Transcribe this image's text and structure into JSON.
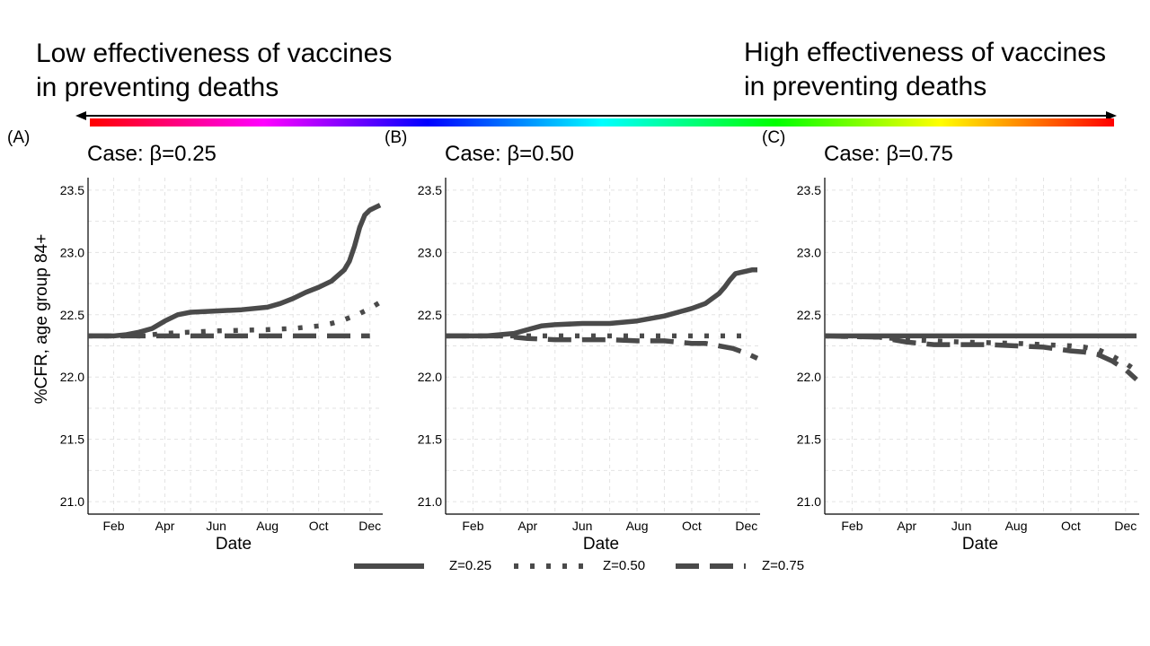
{
  "header": {
    "left_text": [
      "Low effectiveness of vaccines",
      "in preventing deaths"
    ],
    "right_text": [
      "High effectiveness of vaccines",
      "in preventing deaths"
    ]
  },
  "panels": [
    {
      "letter": "(A)",
      "title": "Case: β=0.25"
    },
    {
      "letter": "(B)",
      "title": "Case: β=0.50"
    },
    {
      "letter": "(C)",
      "title": "Case: β=0.75"
    }
  ],
  "legend": [
    {
      "label": "Z=0.25",
      "style": "solid"
    },
    {
      "label": "Z=0.50",
      "style": "dotted"
    },
    {
      "label": "Z=0.75",
      "style": "dashed"
    }
  ],
  "colors": {
    "line": "#4a4a4a",
    "grid": "#e3e3e3"
  },
  "chart_data": [
    {
      "type": "line",
      "title": "Case: β=0.25",
      "xlabel": "Date",
      "ylabel": "%CFR, age group 84+",
      "x_ticks": [
        "Feb",
        "Apr",
        "Jun",
        "Aug",
        "Oct",
        "Dec"
      ],
      "x_tick_positions": [
        1,
        3,
        5,
        7,
        9,
        11
      ],
      "xlim": [
        0.0,
        11.5
      ],
      "ylim": [
        20.9,
        23.6
      ],
      "y_ticks": [
        21.0,
        21.5,
        22.0,
        22.5,
        23.0,
        23.5
      ],
      "grid": true,
      "series": [
        {
          "name": "Z=0.25",
          "style": "solid",
          "x": [
            0,
            1,
            1.5,
            2,
            2.5,
            3,
            3.5,
            4,
            5,
            6,
            7,
            7.5,
            8,
            8.5,
            9,
            9.5,
            10,
            10.2,
            10.4,
            10.6,
            10.8,
            11,
            11.2,
            11.4
          ],
          "y": [
            22.33,
            22.33,
            22.34,
            22.36,
            22.39,
            22.45,
            22.5,
            22.52,
            22.53,
            22.54,
            22.56,
            22.59,
            22.63,
            22.68,
            22.72,
            22.77,
            22.86,
            22.93,
            23.05,
            23.2,
            23.3,
            23.34,
            23.36,
            23.38
          ]
        },
        {
          "name": "Z=0.50",
          "style": "dotted",
          "x": [
            0,
            2,
            3,
            5,
            7,
            8,
            9,
            9.5,
            10,
            10.5,
            11,
            11.4
          ],
          "y": [
            22.33,
            22.33,
            22.35,
            22.37,
            22.38,
            22.39,
            22.41,
            22.43,
            22.46,
            22.5,
            22.55,
            22.6
          ]
        },
        {
          "name": "Z=0.75",
          "style": "dashed",
          "x": [
            0,
            11
          ],
          "y": [
            22.33,
            22.33
          ]
        }
      ]
    },
    {
      "type": "line",
      "title": "Case: β=0.50",
      "xlabel": "Date",
      "ylabel": "",
      "x_ticks": [
        "Feb",
        "Apr",
        "Jun",
        "Aug",
        "Oct",
        "Dec"
      ],
      "x_tick_positions": [
        1,
        3,
        5,
        7,
        9,
        11
      ],
      "xlim": [
        0.0,
        11.5
      ],
      "ylim": [
        20.9,
        23.6
      ],
      "y_ticks": [
        21.0,
        21.5,
        22.0,
        22.5,
        23.0,
        23.5
      ],
      "grid": true,
      "series": [
        {
          "name": "Z=0.25",
          "style": "solid",
          "x": [
            0,
            1,
            1.5,
            2,
            2.5,
            3,
            3.5,
            4,
            5,
            6,
            7,
            7.5,
            8,
            8.5,
            9,
            9.5,
            10,
            10.2,
            10.4,
            10.6,
            10.8,
            11,
            11.2,
            11.4
          ],
          "y": [
            22.33,
            22.33,
            22.33,
            22.34,
            22.35,
            22.38,
            22.41,
            22.42,
            22.43,
            22.43,
            22.45,
            22.47,
            22.49,
            22.52,
            22.55,
            22.59,
            22.67,
            22.72,
            22.78,
            22.83,
            22.84,
            22.85,
            22.86,
            22.86
          ]
        },
        {
          "name": "Z=0.50",
          "style": "dotted",
          "x": [
            0,
            2,
            3,
            5,
            7,
            9,
            11
          ],
          "y": [
            22.33,
            22.33,
            22.33,
            22.33,
            22.33,
            22.33,
            22.33
          ]
        },
        {
          "name": "Z=0.75",
          "style": "dashed",
          "x": [
            0,
            2,
            3,
            4,
            5,
            6,
            7,
            8,
            9,
            9.5,
            10,
            10.5,
            11,
            11.4
          ],
          "y": [
            22.33,
            22.33,
            22.31,
            22.3,
            22.3,
            22.3,
            22.29,
            22.29,
            22.27,
            22.27,
            22.25,
            22.23,
            22.19,
            22.15
          ]
        }
      ]
    },
    {
      "type": "line",
      "title": "Case: β=0.75",
      "xlabel": "Date",
      "ylabel": "",
      "x_ticks": [
        "Feb",
        "Apr",
        "Jun",
        "Aug",
        "Oct",
        "Dec"
      ],
      "x_tick_positions": [
        1,
        3,
        5,
        7,
        9,
        11
      ],
      "xlim": [
        0.0,
        11.5
      ],
      "ylim": [
        20.9,
        23.6
      ],
      "y_ticks": [
        21.0,
        21.5,
        22.0,
        22.5,
        23.0,
        23.5
      ],
      "grid": true,
      "series": [
        {
          "name": "Z=0.25",
          "style": "solid",
          "x": [
            0,
            11.4
          ],
          "y": [
            22.33,
            22.33
          ]
        },
        {
          "name": "Z=0.50",
          "style": "dotted",
          "x": [
            0,
            2,
            3,
            5,
            7,
            9,
            9.5,
            10,
            10.5,
            11,
            11.4
          ],
          "y": [
            22.33,
            22.32,
            22.3,
            22.28,
            22.27,
            22.25,
            22.24,
            22.22,
            22.17,
            22.11,
            22.05
          ]
        },
        {
          "name": "Z=0.75",
          "style": "dashed",
          "x": [
            0,
            2,
            3,
            4,
            5,
            6,
            7,
            8,
            9,
            9.5,
            10,
            10.5,
            11,
            11.4
          ],
          "y": [
            22.33,
            22.32,
            22.28,
            22.26,
            22.26,
            22.26,
            22.25,
            22.24,
            22.21,
            22.2,
            22.18,
            22.13,
            22.06,
            21.98
          ]
        }
      ]
    }
  ]
}
